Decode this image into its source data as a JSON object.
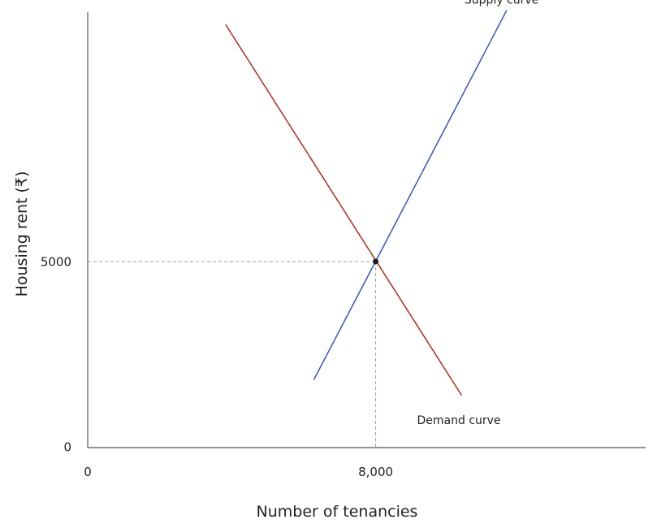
{
  "chart_data": {
    "type": "line",
    "title": "",
    "xlabel": "Number of tenancies",
    "ylabel": "Housing rent (₹)",
    "x_ticks": [
      {
        "value": 0,
        "label": "0"
      },
      {
        "value": 8000,
        "label": "8,000"
      }
    ],
    "y_ticks": [
      {
        "value": 0,
        "label": "0"
      },
      {
        "value": 5000,
        "label": "5000"
      }
    ],
    "xlim": [
      0,
      15500
    ],
    "ylim": [
      0,
      11700
    ],
    "grid": false,
    "series": [
      {
        "name": "Supply curve",
        "color": "#3a52c7",
        "x": [
          6280,
          11640
        ],
        "y": [
          1820,
          11750
        ]
      },
      {
        "name": "Demand curve",
        "color": "#b52a1c",
        "x": [
          3830,
          10390
        ],
        "y": [
          11370,
          1400
        ]
      }
    ],
    "equilibrium": {
      "x": 8000,
      "y": 5000
    },
    "labels": {
      "supply": "Supply curve",
      "demand": "Demand curve"
    },
    "colors": {
      "axis": "#555555",
      "guide": "#8aa3ac",
      "point": "#1a1a1a"
    }
  }
}
